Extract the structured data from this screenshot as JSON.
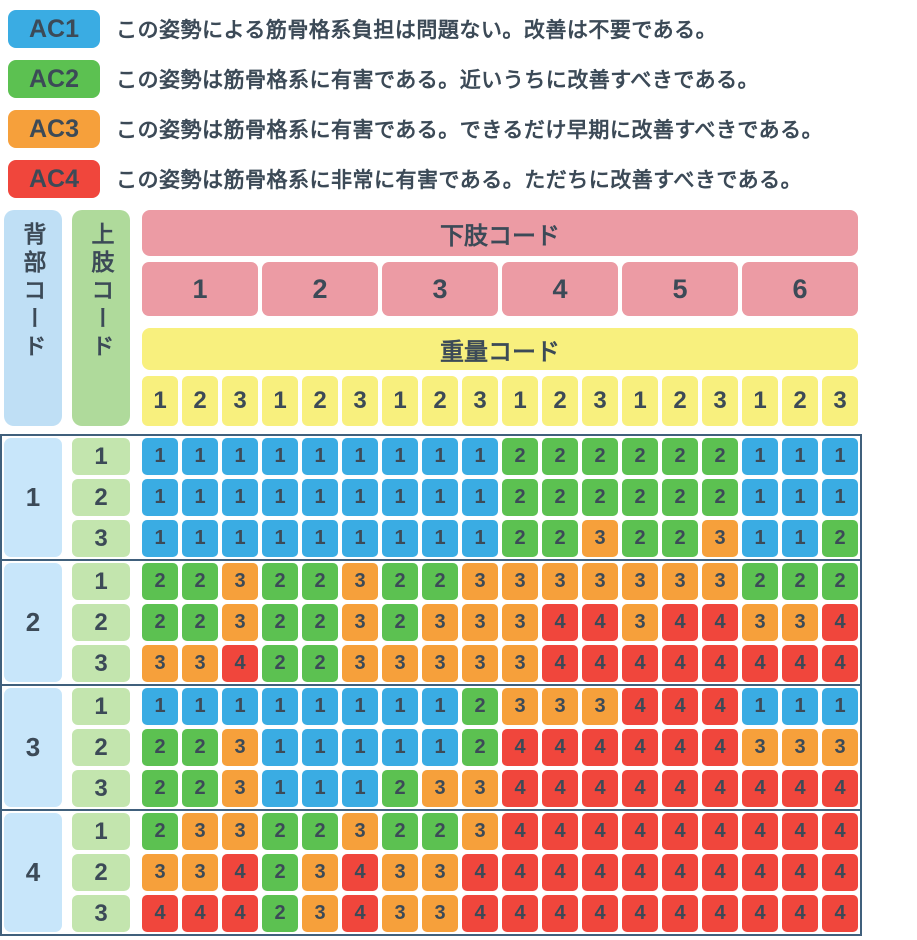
{
  "colors": {
    "ac1": "#3AACE3",
    "ac2": "#5CC151",
    "ac3": "#F6A03B",
    "ac4": "#F0463C",
    "back_header": "#BFDFF5",
    "back_cell": "#C8E6FA",
    "upper_header": "#AFDA9B",
    "upper_cell": "#C3E5AE",
    "legs_header": "#EC9BA4",
    "weight_header": "#F8F07E",
    "text": "#3C4A57",
    "border": "#40607C"
  },
  "legend": [
    {
      "code": "AC1",
      "ac": 1,
      "text": "この姿勢による筋骨格系負担は問題ない。改善は不要である。"
    },
    {
      "code": "AC2",
      "ac": 2,
      "text": "この姿勢は筋骨格系に有害である。近いうちに改善すべきである。"
    },
    {
      "code": "AC3",
      "ac": 3,
      "text": "この姿勢は筋骨格系に有害である。できるだけ早期に改善すべきである。"
    },
    {
      "code": "AC4",
      "ac": 4,
      "text": "この姿勢は筋骨格系に非常に有害である。ただちに改善すべきである。"
    }
  ],
  "chart_data": {
    "type": "table",
    "row_group_label": "背部コード",
    "row_sub_label": "上肢コード",
    "col_group_label": "下肢コード",
    "col_sub_label": "重量コード",
    "col_groups": [
      "1",
      "2",
      "3",
      "4",
      "5",
      "6"
    ],
    "col_subs": [
      "1",
      "2",
      "3"
    ],
    "legend_categories": [
      "AC1",
      "AC2",
      "AC3",
      "AC4"
    ],
    "groups": [
      {
        "back": "1",
        "rows": [
          {
            "upper": "1",
            "values": [
              1,
              1,
              1,
              1,
              1,
              1,
              1,
              1,
              1,
              2,
              2,
              2,
              2,
              2,
              2,
              1,
              1,
              1
            ]
          },
          {
            "upper": "2",
            "values": [
              1,
              1,
              1,
              1,
              1,
              1,
              1,
              1,
              1,
              2,
              2,
              2,
              2,
              2,
              2,
              1,
              1,
              1
            ]
          },
          {
            "upper": "3",
            "values": [
              1,
              1,
              1,
              1,
              1,
              1,
              1,
              1,
              1,
              2,
              2,
              3,
              2,
              2,
              3,
              1,
              1,
              2
            ]
          }
        ]
      },
      {
        "back": "2",
        "rows": [
          {
            "upper": "1",
            "values": [
              2,
              2,
              3,
              2,
              2,
              3,
              2,
              2,
              3,
              3,
              3,
              3,
              3,
              3,
              3,
              2,
              2,
              2
            ]
          },
          {
            "upper": "2",
            "values": [
              2,
              2,
              3,
              2,
              2,
              3,
              2,
              3,
              3,
              3,
              4,
              4,
              3,
              4,
              4,
              3,
              3,
              4
            ]
          },
          {
            "upper": "3",
            "values": [
              3,
              3,
              4,
              2,
              2,
              3,
              3,
              3,
              3,
              3,
              4,
              4,
              4,
              4,
              4,
              4,
              4,
              4
            ]
          }
        ]
      },
      {
        "back": "3",
        "rows": [
          {
            "upper": "1",
            "values": [
              1,
              1,
              1,
              1,
              1,
              1,
              1,
              1,
              2,
              3,
              3,
              3,
              4,
              4,
              4,
              1,
              1,
              1
            ]
          },
          {
            "upper": "2",
            "values": [
              2,
              2,
              3,
              1,
              1,
              1,
              1,
              1,
              2,
              4,
              4,
              4,
              4,
              4,
              4,
              3,
              3,
              3
            ]
          },
          {
            "upper": "3",
            "values": [
              2,
              2,
              3,
              1,
              1,
              1,
              2,
              3,
              3,
              4,
              4,
              4,
              4,
              4,
              4,
              4,
              4,
              4
            ]
          }
        ]
      },
      {
        "back": "4",
        "rows": [
          {
            "upper": "1",
            "values": [
              2,
              3,
              3,
              2,
              2,
              3,
              2,
              2,
              3,
              4,
              4,
              4,
              4,
              4,
              4,
              4,
              4,
              4
            ]
          },
          {
            "upper": "2",
            "values": [
              3,
              3,
              4,
              2,
              3,
              4,
              3,
              3,
              4,
              4,
              4,
              4,
              4,
              4,
              4,
              4,
              4,
              4
            ]
          },
          {
            "upper": "3",
            "values": [
              4,
              4,
              4,
              2,
              3,
              4,
              3,
              3,
              4,
              4,
              4,
              4,
              4,
              4,
              4,
              4,
              4,
              4
            ]
          }
        ]
      }
    ]
  }
}
